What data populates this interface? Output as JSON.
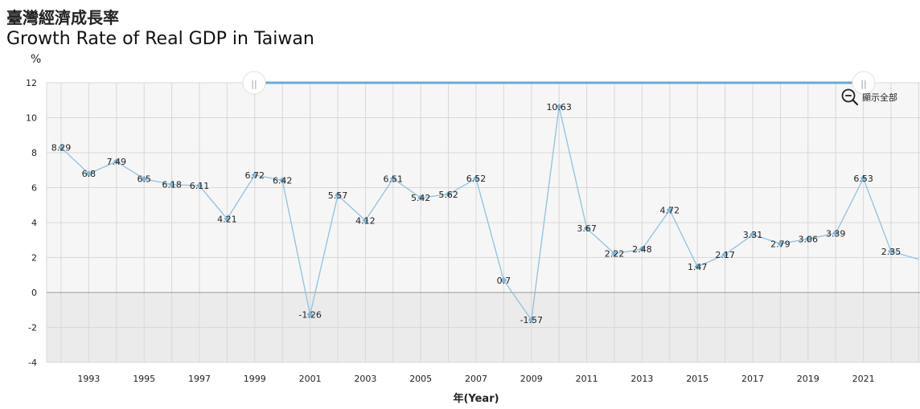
{
  "header": {
    "title_zh": "臺灣經濟成長率",
    "title_en": "Growth Rate of Real GDP in Taiwan"
  },
  "controls": {
    "reset_label": "顯示全部",
    "zoom_out_icon": "zoom-out-icon",
    "handle_glyph": "||"
  },
  "colors": {
    "line": "#8ec2e0",
    "marker": "#7fb6d6",
    "negative_band": "#ebebeb",
    "plot_bg": "#f6f6f6",
    "grid": "#d8d8d8",
    "navigator": "#6aaad4"
  },
  "chart_data": {
    "type": "line",
    "ylabel": "%",
    "xlabel": "年(Year)",
    "ylim": [
      -4,
      12
    ],
    "yticks": [
      -4,
      -2,
      0,
      2,
      4,
      6,
      8,
      10,
      12
    ],
    "xticks": [
      1993,
      1995,
      1997,
      1999,
      2001,
      2003,
      2005,
      2007,
      2009,
      2011,
      2013,
      2015,
      2017,
      2019,
      2021
    ],
    "grid": true,
    "series": [
      {
        "x": [
          1992,
          1993,
          1994,
          1995,
          1996,
          1997,
          1998,
          1999,
          2000,
          2001,
          2002,
          2003,
          2004,
          2005,
          2006,
          2007,
          2008,
          2009,
          2010,
          2011,
          2012,
          2013,
          2014,
          2015,
          2016,
          2017,
          2018,
          2019,
          2020,
          2021,
          2022,
          2023
        ],
        "values": [
          8.29,
          6.8,
          7.49,
          6.5,
          6.18,
          6.11,
          4.21,
          6.72,
          6.42,
          -1.26,
          5.57,
          4.12,
          6.51,
          5.42,
          5.62,
          6.52,
          0.7,
          -1.57,
          10.63,
          3.67,
          2.22,
          2.48,
          4.72,
          1.47,
          2.17,
          3.31,
          2.79,
          3.06,
          3.39,
          6.53,
          2.35,
          1.9
        ],
        "labels": [
          "8.29",
          "6.8",
          "7.49",
          "6.5",
          "6.18",
          "6.11",
          "4.21",
          "6.72",
          "6.42",
          "-1.26",
          "5.57",
          "4.12",
          "6.51",
          "5.42",
          "5.62",
          "6.52",
          "0.7",
          "-1.57",
          "10.63",
          "3.67",
          "2.22",
          "2.48",
          "4.72",
          "1.47",
          "2.17",
          "3.31",
          "2.79",
          "3.06",
          "3.39",
          "6.53",
          "2.35",
          ""
        ]
      }
    ]
  }
}
